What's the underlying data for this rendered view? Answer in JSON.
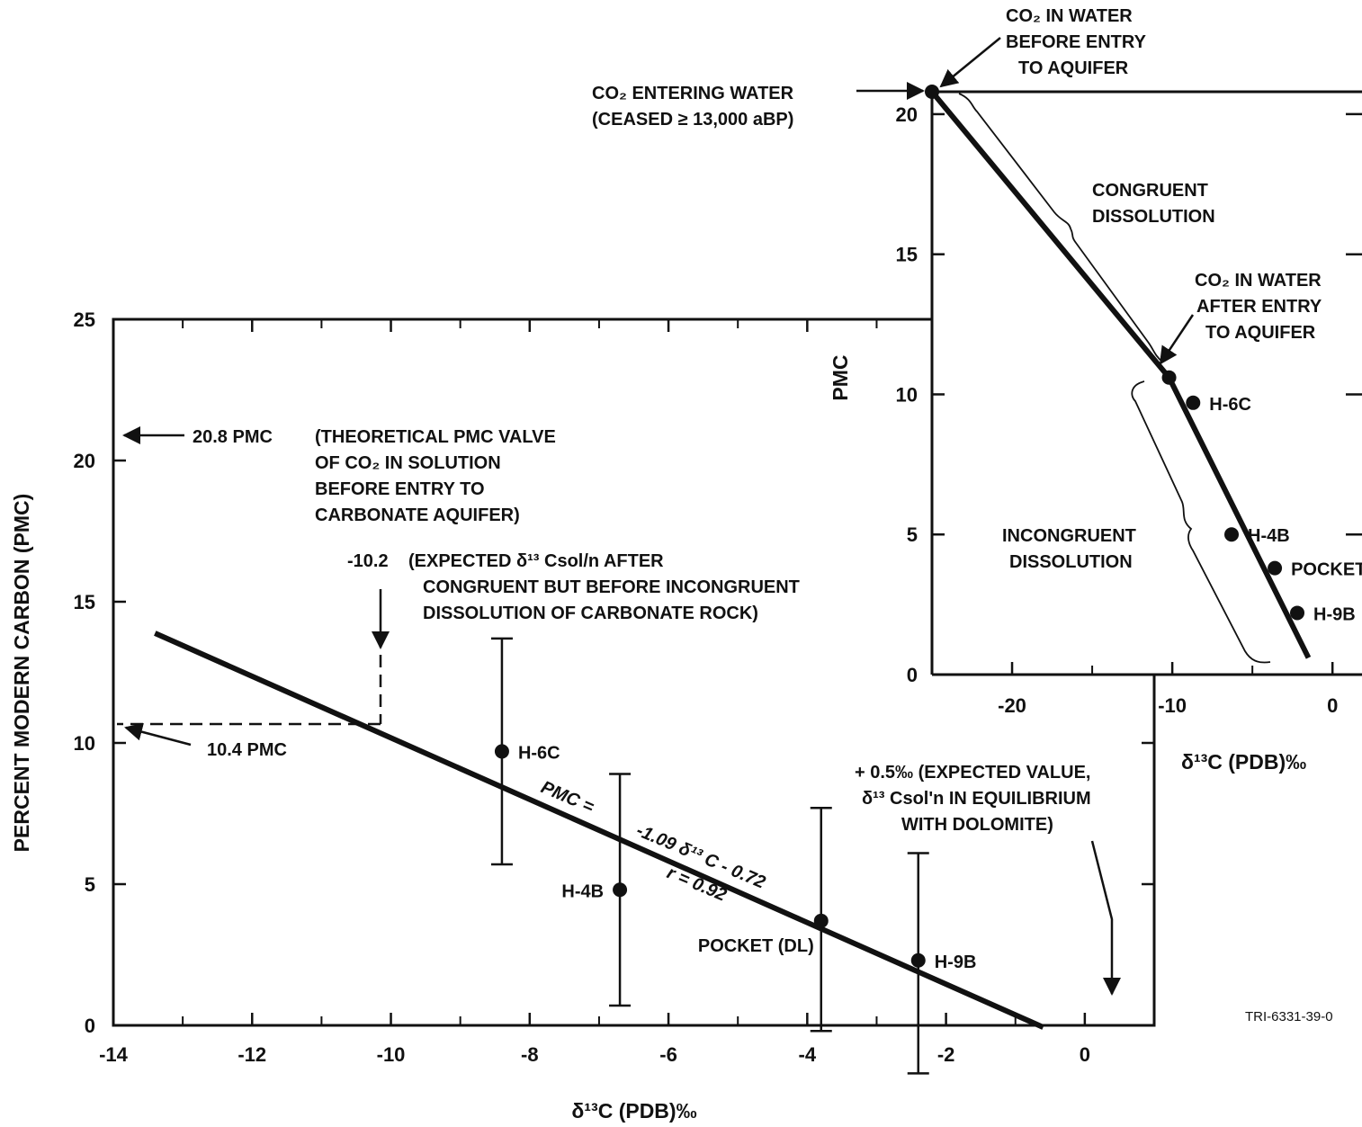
{
  "figure_id": "TRI-6331-39-0",
  "chart_data": [
    {
      "type": "scatter",
      "xlabel": "δ¹³C (PDB)‰",
      "ylabel": "PERCENT MODERN CARBON (PMC)",
      "xlim": [
        -14,
        1
      ],
      "ylim": [
        0,
        25
      ],
      "xticks": [
        "-14",
        "-12",
        "-10",
        "-8",
        "-6",
        "-4",
        "-2",
        "0"
      ],
      "yticks": [
        "0",
        "5",
        "10",
        "15",
        "20",
        "25"
      ],
      "points": [
        {
          "label": "H-6C",
          "x": -8.4,
          "y": 9.7,
          "err_low": 5.7,
          "err_high": 13.7
        },
        {
          "label": "H-4B",
          "x": -6.7,
          "y": 4.8,
          "err_low": 0.7,
          "err_high": 8.9
        },
        {
          "label": "POCKET (DL)",
          "x": -3.8,
          "y": 3.7,
          "err_low": -0.2,
          "err_high": 7.7
        },
        {
          "label": "H-9B",
          "x": -2.4,
          "y": 2.3,
          "err_low": -1.7,
          "err_high": 6.1
        }
      ],
      "fit_line": {
        "x_start": -13.4,
        "x_end": -0.6
      },
      "equation_prefix": "PMC =",
      "equation_body": "-1.09 δ¹³ C - 0.72",
      "r_label": "r = 0.92",
      "annotations": {
        "pmc_208_value": "20.8 PMC",
        "pmc_208_text": [
          "(THEORETICAL PMC VALVE",
          "OF CO₂ IN SOLUTION",
          "BEFORE ENTRY TO",
          "CARBONATE AQUIFER)"
        ],
        "pmc_104": "10.4 PMC",
        "expected_value": "-10.2",
        "expected_text": [
          "(EXPECTED δ¹³ Csol/n AFTER",
          "CONGRUENT BUT BEFORE INCONGRUENT",
          "DISSOLUTION OF CARBONATE ROCK)"
        ],
        "dolomite_text": [
          "+ 0.5‰ (EXPECTED VALUE,",
          "δ¹³ Csol'n IN EQUILIBRIUM",
          "WITH DOLOMITE)"
        ]
      }
    },
    {
      "type": "line",
      "xlabel": "δ¹³C (PDB)‰",
      "ylabel": "PMC",
      "xlim": [
        -25,
        1
      ],
      "ylim": [
        0,
        20.8
      ],
      "xticks": [
        "-20",
        "-10",
        "0"
      ],
      "yticks": [
        "0",
        "5",
        "10",
        "15",
        "20"
      ],
      "path": [
        {
          "x": -25,
          "y": 20.8
        },
        {
          "x": -10.2,
          "y": 10.6
        },
        {
          "x": -1.5,
          "y": 0.6
        }
      ],
      "points": [
        {
          "label": "H-6C",
          "x": -8.7,
          "y": 9.7
        },
        {
          "label": "H-4B",
          "x": -6.3,
          "y": 5.0
        },
        {
          "label": "POCKET",
          "x": -3.6,
          "y": 3.8
        },
        {
          "label": "H-9B",
          "x": -2.2,
          "y": 2.2
        }
      ],
      "annotations": {
        "co2_entering": [
          "CO₂ ENTERING WATER",
          "(CEASED ≥ 13,000 aBP)"
        ],
        "co2_before": [
          "CO₂ IN WATER",
          "BEFORE ENTRY",
          "TO AQUIFER"
        ],
        "co2_after": [
          "CO₂ IN WATER",
          "AFTER ENTRY",
          "TO AQUIFER"
        ],
        "congruent": [
          "CONGRUENT",
          "DISSOLUTION"
        ],
        "incongruent": [
          "INCONGRUENT",
          "DISSOLUTION"
        ]
      }
    }
  ]
}
